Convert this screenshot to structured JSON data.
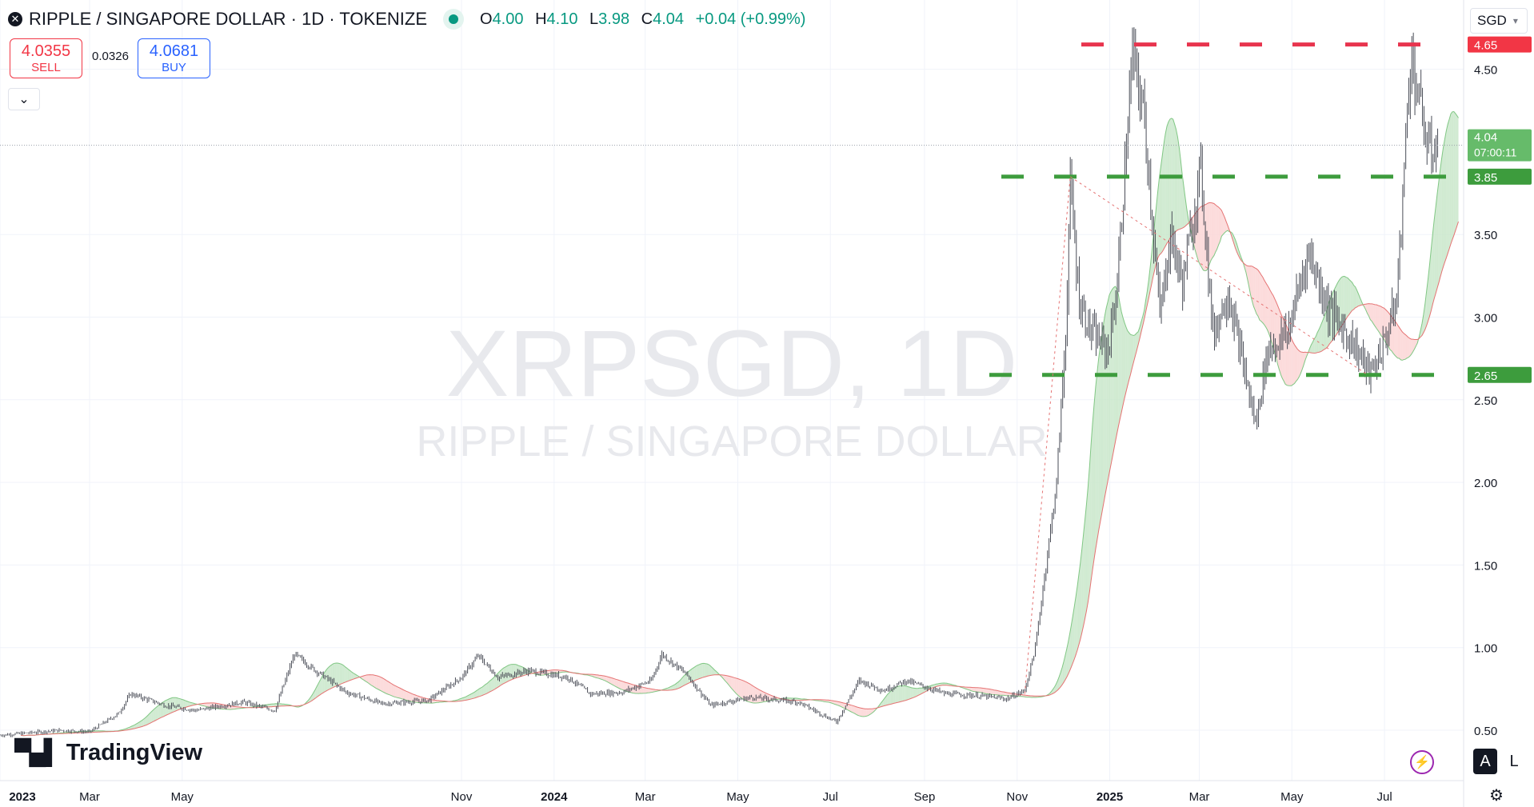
{
  "header": {
    "close_icon": "close-icon",
    "symbol_title": "RIPPLE / SINGAPORE DOLLAR · 1D · TOKENIZE",
    "market_status": "market-open-dot",
    "ohlc": {
      "o_label": "O",
      "o": "4.00",
      "h_label": "H",
      "h": "4.10",
      "l_label": "L",
      "l": "3.98",
      "c_label": "C",
      "c": "4.04",
      "change": "+0.04 (+0.99%)"
    }
  },
  "trade": {
    "sell_price": "4.0355",
    "sell_label": "SELL",
    "spread": "0.0326",
    "buy_price": "4.0681",
    "buy_label": "BUY"
  },
  "currency_selector": "SGD",
  "watermark": {
    "symbol": "XRPSGD, 1D",
    "name": "RIPPLE / SINGAPORE DOLLAR"
  },
  "branding": {
    "logo_text": "TradingView"
  },
  "scale_buttons": {
    "auto": "A",
    "log": "L"
  },
  "colors": {
    "up": "#089981",
    "down": "#f23645",
    "accent": "#2962ff",
    "resistance": "#f23645",
    "support": "#3d9c3d",
    "cloud_bull": "#a5d6a7",
    "cloud_bear": "#f5b5b5"
  },
  "chart_data": {
    "type": "candlestick",
    "title": "RIPPLE / SINGAPORE DOLLAR · 1D · TOKENIZE",
    "x_range": [
      "2023-01-01",
      "2025-08-20"
    ],
    "ylim": [
      0.4,
      4.75
    ],
    "y_ticks": [
      "0.50",
      "1.00",
      "1.50",
      "2.00",
      "2.50",
      "3.00",
      "3.50",
      "4.50"
    ],
    "x_ticks": [
      {
        "label": "2023",
        "date": "2023-01-01",
        "bold": true
      },
      {
        "label": "Mar",
        "date": "2023-03-01"
      },
      {
        "label": "May",
        "date": "2023-05-01"
      },
      {
        "label": "Nov",
        "date": "2023-11-01"
      },
      {
        "label": "2024",
        "date": "2024-01-01",
        "bold": true
      },
      {
        "label": "Mar",
        "date": "2024-03-01"
      },
      {
        "label": "May",
        "date": "2024-05-01"
      },
      {
        "label": "Jul",
        "date": "2024-07-01"
      },
      {
        "label": "Sep",
        "date": "2024-09-01"
      },
      {
        "label": "Nov",
        "date": "2024-11-01"
      },
      {
        "label": "2025",
        "date": "2025-01-01",
        "bold": true
      },
      {
        "label": "Mar",
        "date": "2025-03-01"
      },
      {
        "label": "May",
        "date": "2025-05-01"
      },
      {
        "label": "Jul",
        "date": "2025-07-01"
      }
    ],
    "price_path": [
      [
        "2023-01-01",
        0.47
      ],
      [
        "2023-02-10",
        0.5
      ],
      [
        "2023-03-01",
        0.49
      ],
      [
        "2023-03-20",
        0.6
      ],
      [
        "2023-03-28",
        0.72
      ],
      [
        "2023-04-20",
        0.65
      ],
      [
        "2023-05-10",
        0.62
      ],
      [
        "2023-06-10",
        0.67
      ],
      [
        "2023-07-01",
        0.62
      ],
      [
        "2023-07-14",
        0.96
      ],
      [
        "2023-07-25",
        0.88
      ],
      [
        "2023-08-17",
        0.73
      ],
      [
        "2023-09-10",
        0.66
      ],
      [
        "2023-10-10",
        0.68
      ],
      [
        "2023-11-01",
        0.82
      ],
      [
        "2023-11-12",
        0.95
      ],
      [
        "2023-11-25",
        0.82
      ],
      [
        "2023-12-15",
        0.86
      ],
      [
        "2024-01-10",
        0.82
      ],
      [
        "2024-01-25",
        0.72
      ],
      [
        "2024-02-15",
        0.73
      ],
      [
        "2024-03-05",
        0.8
      ],
      [
        "2024-03-12",
        0.96
      ],
      [
        "2024-03-28",
        0.84
      ],
      [
        "2024-04-13",
        0.65
      ],
      [
        "2024-05-10",
        0.7
      ],
      [
        "2024-06-10",
        0.67
      ],
      [
        "2024-07-05",
        0.55
      ],
      [
        "2024-07-20",
        0.8
      ],
      [
        "2024-08-05",
        0.74
      ],
      [
        "2024-08-20",
        0.8
      ],
      [
        "2024-09-15",
        0.72
      ],
      [
        "2024-10-05",
        0.71
      ],
      [
        "2024-10-25",
        0.69
      ],
      [
        "2024-11-06",
        0.74
      ],
      [
        "2024-11-13",
        1.0
      ],
      [
        "2024-11-20",
        1.5
      ],
      [
        "2024-11-27",
        2.0
      ],
      [
        "2024-12-03",
        2.9
      ],
      [
        "2024-12-06",
        3.8
      ],
      [
        "2024-12-12",
        3.1
      ],
      [
        "2024-12-20",
        2.9
      ],
      [
        "2024-12-31",
        2.8
      ],
      [
        "2025-01-06",
        3.2
      ],
      [
        "2025-01-16",
        4.6
      ],
      [
        "2025-01-24",
        4.2
      ],
      [
        "2025-02-03",
        3.0
      ],
      [
        "2025-02-10",
        3.5
      ],
      [
        "2025-02-18",
        3.2
      ],
      [
        "2025-03-02",
        3.9
      ],
      [
        "2025-03-10",
        2.9
      ],
      [
        "2025-03-20",
        3.15
      ],
      [
        "2025-04-07",
        2.35
      ],
      [
        "2025-04-15",
        2.8
      ],
      [
        "2025-04-28",
        2.9
      ],
      [
        "2025-05-12",
        3.4
      ],
      [
        "2025-05-25",
        3.05
      ],
      [
        "2025-06-10",
        2.85
      ],
      [
        "2025-06-22",
        2.65
      ],
      [
        "2025-07-01",
        2.85
      ],
      [
        "2025-07-09",
        3.1
      ],
      [
        "2025-07-14",
        3.9
      ],
      [
        "2025-07-18",
        4.6
      ],
      [
        "2025-07-24",
        4.3
      ],
      [
        "2025-07-30",
        4.0
      ],
      [
        "2025-08-05",
        4.04
      ]
    ],
    "overlays": {
      "ichimoku_cloud": "shaded green/red cloud",
      "resistance_line": {
        "value": 4.65,
        "label": "4.65"
      },
      "support_upper": {
        "value": 3.85,
        "label": "3.85"
      },
      "support_lower": {
        "value": 2.65,
        "label": "2.65"
      },
      "last_price": {
        "value": 4.04,
        "label": "4.04",
        "countdown": "07:00:11"
      }
    },
    "grid": true
  }
}
